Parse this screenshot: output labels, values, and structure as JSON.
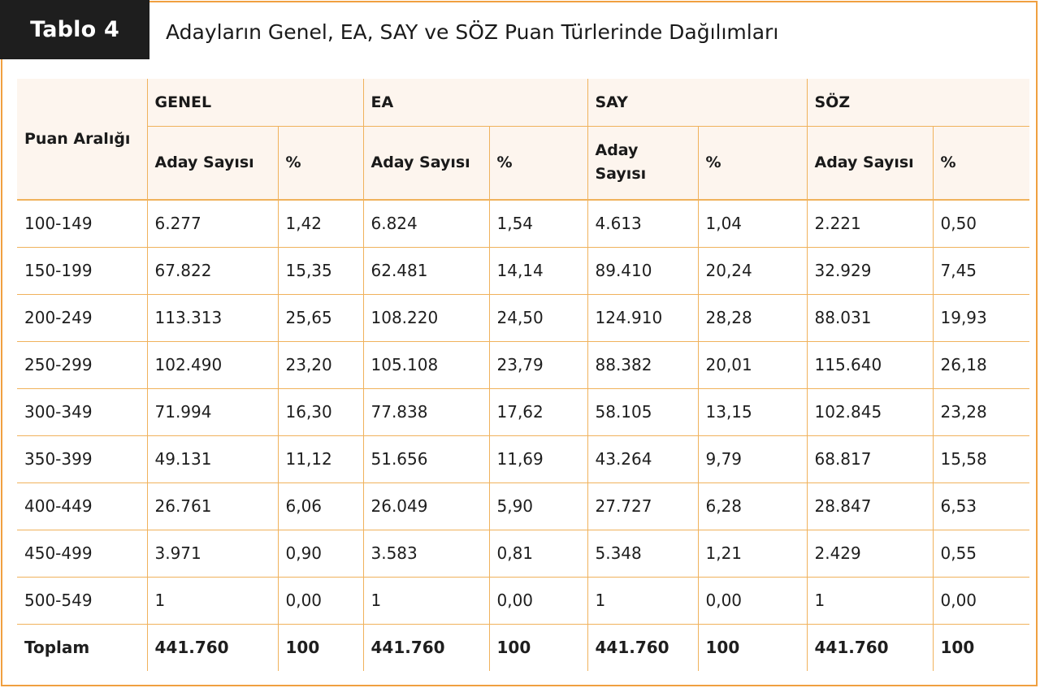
{
  "header": {
    "tag_label": "Tablo 4",
    "title": "Adayların Genel, EA, SAY ve SÖZ Puan Türlerinde Dağılımları"
  },
  "colors": {
    "accent_border": "#f0a040",
    "header_bg": "#fdf5ee",
    "tag_bg": "#1e1e1e"
  },
  "table": {
    "range_header": "Puan Aralığı",
    "groups": [
      {
        "label": "GENEL",
        "count_label": "Aday Sayısı",
        "pct_label": "%"
      },
      {
        "label": "EA",
        "count_label": "Aday Sayısı",
        "pct_label": "%"
      },
      {
        "label": "SAY",
        "count_label": "Aday Sayısı",
        "pct_label": "%"
      },
      {
        "label": "SÖZ",
        "count_label": "Aday Sayısı",
        "pct_label": "%"
      }
    ],
    "rows": [
      {
        "range": "100-149",
        "cells": [
          "6.277",
          "1,42",
          "6.824",
          "1,54",
          "4.613",
          "1,04",
          "2.221",
          "0,50"
        ]
      },
      {
        "range": "150-199",
        "cells": [
          "67.822",
          "15,35",
          "62.481",
          "14,14",
          "89.410",
          "20,24",
          "32.929",
          "7,45"
        ]
      },
      {
        "range": "200-249",
        "cells": [
          "113.313",
          "25,65",
          "108.220",
          "24,50",
          "124.910",
          "28,28",
          "88.031",
          "19,93"
        ]
      },
      {
        "range": "250-299",
        "cells": [
          "102.490",
          "23,20",
          "105.108",
          "23,79",
          "88.382",
          "20,01",
          "115.640",
          "26,18"
        ]
      },
      {
        "range": "300-349",
        "cells": [
          "71.994",
          "16,30",
          "77.838",
          "17,62",
          "58.105",
          "13,15",
          "102.845",
          "23,28"
        ]
      },
      {
        "range": "350-399",
        "cells": [
          "49.131",
          "11,12",
          "51.656",
          "11,69",
          "43.264",
          "9,79",
          "68.817",
          "15,58"
        ]
      },
      {
        "range": "400-449",
        "cells": [
          "26.761",
          "6,06",
          "26.049",
          "5,90",
          "27.727",
          "6,28",
          "28.847",
          "6,53"
        ]
      },
      {
        "range": "450-499",
        "cells": [
          "3.971",
          "0,90",
          "3.583",
          "0,81",
          "5.348",
          "1,21",
          "2.429",
          "0,55"
        ]
      },
      {
        "range": "500-549",
        "cells": [
          "1",
          "0,00",
          "1",
          "0,00",
          "1",
          "0,00",
          "1",
          "0,00"
        ]
      }
    ],
    "total": {
      "label": "Toplam",
      "cells": [
        "441.760",
        "100",
        "441.760",
        "100",
        "441.760",
        "100",
        "441.760",
        "100"
      ]
    }
  }
}
